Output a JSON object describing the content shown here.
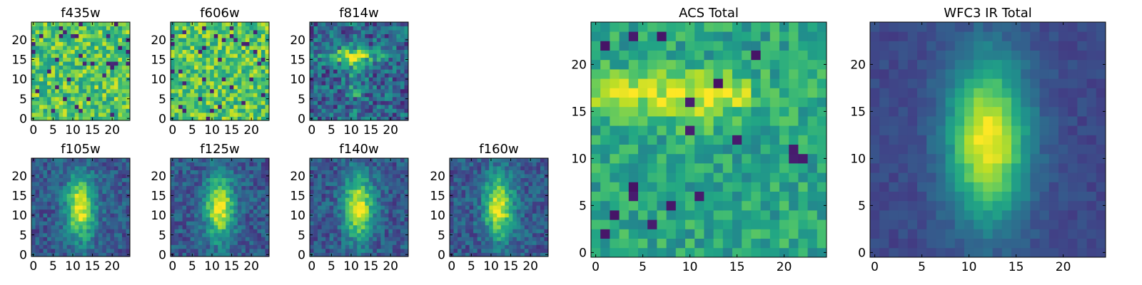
{
  "chart_data": [
    {
      "type": "heatmap",
      "title": "f435w",
      "grid_size": 25,
      "pattern": "noise_flat",
      "seed": 11,
      "colormap": "viridis",
      "xticks": [
        0,
        5,
        10,
        15,
        20
      ],
      "yticks": [
        0,
        5,
        10,
        15,
        20
      ],
      "xlim": [
        -0.5,
        24.5
      ],
      "ylim": [
        -0.5,
        24.5
      ]
    },
    {
      "type": "heatmap",
      "title": "f606w",
      "grid_size": 25,
      "pattern": "noise_flat",
      "seed": 23,
      "colormap": "viridis",
      "xticks": [
        0,
        5,
        10,
        15,
        20
      ],
      "yticks": [
        0,
        5,
        10,
        15,
        20
      ],
      "xlim": [
        -0.5,
        24.5
      ],
      "ylim": [
        -0.5,
        24.5
      ]
    },
    {
      "type": "heatmap",
      "title": "f814w",
      "grid_size": 25,
      "pattern": "horizontal_streak",
      "seed": 37,
      "colormap": "viridis",
      "xticks": [
        0,
        5,
        10,
        15,
        20
      ],
      "yticks": [
        0,
        5,
        10,
        15,
        20
      ],
      "xlim": [
        -0.5,
        24.5
      ],
      "ylim": [
        -0.5,
        24.5
      ]
    },
    {
      "type": "heatmap",
      "title": "f105w",
      "grid_size": 25,
      "pattern": "elongated_blob",
      "seed": 41,
      "colormap": "viridis",
      "xticks": [
        0,
        5,
        10,
        15,
        20
      ],
      "yticks": [
        0,
        5,
        10,
        15,
        20
      ],
      "xlim": [
        -0.5,
        24.5
      ],
      "ylim": [
        -0.5,
        24.5
      ]
    },
    {
      "type": "heatmap",
      "title": "f125w",
      "grid_size": 25,
      "pattern": "elongated_blob",
      "seed": 53,
      "colormap": "viridis",
      "xticks": [
        0,
        5,
        10,
        15,
        20
      ],
      "yticks": [
        0,
        5,
        10,
        15,
        20
      ],
      "xlim": [
        -0.5,
        24.5
      ],
      "ylim": [
        -0.5,
        24.5
      ]
    },
    {
      "type": "heatmap",
      "title": "f140w",
      "grid_size": 25,
      "pattern": "elongated_blob",
      "seed": 67,
      "colormap": "viridis",
      "xticks": [
        0,
        5,
        10,
        15,
        20
      ],
      "yticks": [
        0,
        5,
        10,
        15,
        20
      ],
      "xlim": [
        -0.5,
        24.5
      ],
      "ylim": [
        -0.5,
        24.5
      ]
    },
    {
      "type": "heatmap",
      "title": "f160w",
      "grid_size": 25,
      "pattern": "elongated_blob",
      "seed": 79,
      "colormap": "viridis",
      "xticks": [
        0,
        5,
        10,
        15,
        20
      ],
      "yticks": [
        0,
        5,
        10,
        15,
        20
      ],
      "xlim": [
        -0.5,
        24.5
      ],
      "ylim": [
        -0.5,
        24.5
      ]
    },
    {
      "type": "heatmap",
      "title": "ACS Total",
      "grid_size": 25,
      "pattern": "horizontal_streak_total",
      "seed": 83,
      "colormap": "viridis",
      "xticks": [
        0,
        5,
        10,
        15,
        20
      ],
      "yticks": [
        0,
        5,
        10,
        15,
        20
      ],
      "xlim": [
        -0.5,
        24.5
      ],
      "ylim": [
        -0.5,
        24.5
      ]
    },
    {
      "type": "heatmap",
      "title": "WFC3 IR Total",
      "grid_size": 25,
      "pattern": "smooth_blob",
      "seed": 97,
      "colormap": "viridis",
      "xticks": [
        0,
        5,
        10,
        15,
        20
      ],
      "yticks": [
        0,
        5,
        10,
        15,
        20
      ],
      "xlim": [
        -0.5,
        24.5
      ],
      "ylim": [
        -0.5,
        24.5
      ]
    }
  ]
}
